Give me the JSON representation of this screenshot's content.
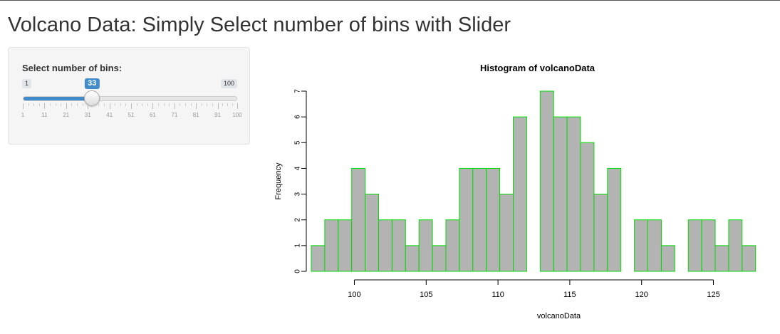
{
  "page": {
    "title": "Volcano Data: Simply Select number of bins with Slider"
  },
  "slider": {
    "label": "Select number of bins:",
    "min": 1,
    "max": 100,
    "value": 33,
    "min_label": "1",
    "max_label": "100",
    "value_label": "33",
    "tick_labels": [
      "1",
      "11",
      "21",
      "31",
      "41",
      "51",
      "61",
      "71",
      "81",
      "91",
      "100"
    ],
    "accent_color": "#428bca"
  },
  "chart_data": {
    "type": "bar",
    "title": "Histogram of volcanoData",
    "xlabel": "volcanoData",
    "ylabel": "Frequency",
    "bin_start": 97,
    "bin_width": 0.9375,
    "values": [
      1,
      2,
      2,
      4,
      3,
      2,
      2,
      1,
      2,
      1,
      2,
      4,
      4,
      4,
      3,
      6,
      0,
      7,
      6,
      6,
      5,
      3,
      4,
      0,
      2,
      2,
      1,
      0,
      2,
      2,
      1,
      2,
      1
    ],
    "xlim": [
      97,
      128
    ],
    "ylim": [
      0,
      7
    ],
    "x_ticks": [
      100,
      105,
      110,
      115,
      120,
      125
    ],
    "x_tick_labels": [
      "100",
      "105",
      "110",
      "115",
      "120",
      "125"
    ],
    "y_ticks": [
      0,
      1,
      2,
      3,
      4,
      5,
      6,
      7
    ],
    "y_tick_labels": [
      "0",
      "1",
      "2",
      "3",
      "4",
      "5",
      "6",
      "7"
    ],
    "bar_fill": "#b3b3b3",
    "bar_border": "#00dd00"
  }
}
